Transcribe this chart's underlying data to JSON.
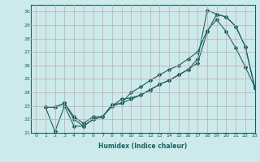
{
  "xlabel": "Humidex (Indice chaleur)",
  "bg_color": "#cceaea",
  "grid_color": "#c4a8b0",
  "line_color": "#1a6060",
  "xlim": [
    -0.5,
    23
  ],
  "ylim": [
    21,
    30.5
  ],
  "yticks": [
    21,
    22,
    23,
    24,
    25,
    26,
    27,
    28,
    29,
    30
  ],
  "xticks": [
    0,
    1,
    2,
    3,
    4,
    5,
    6,
    7,
    8,
    9,
    10,
    11,
    12,
    13,
    14,
    15,
    16,
    17,
    18,
    19,
    20,
    21,
    22,
    23
  ],
  "series1_x": [
    1,
    2,
    3,
    4,
    5,
    6,
    7,
    8,
    9,
    10,
    11,
    12,
    13,
    14,
    15,
    16,
    17,
    18,
    19,
    20,
    21,
    22,
    23
  ],
  "series1_y": [
    22.9,
    22.9,
    23.2,
    22.2,
    21.7,
    22.2,
    22.2,
    23.1,
    23.2,
    24.0,
    24.4,
    24.9,
    25.3,
    25.7,
    26.0,
    26.5,
    27.0,
    28.6,
    29.4,
    28.5,
    27.3,
    25.9,
    24.4
  ],
  "series2_x": [
    1,
    2,
    3,
    4,
    5,
    6,
    7,
    8,
    9,
    10,
    11,
    12,
    13,
    14,
    15,
    16,
    17,
    18,
    19,
    20,
    21,
    22,
    23
  ],
  "series2_y": [
    22.9,
    22.9,
    23.2,
    22.0,
    21.5,
    22.0,
    22.2,
    23.0,
    23.2,
    23.5,
    23.8,
    24.2,
    24.6,
    24.9,
    25.3,
    25.7,
    26.2,
    28.5,
    29.8,
    29.6,
    28.9,
    27.4,
    24.3
  ],
  "series3_x": [
    1,
    2,
    3,
    4,
    5,
    6,
    7,
    8,
    9,
    10,
    11,
    12,
    13,
    14,
    15,
    16,
    17,
    18,
    19,
    20,
    21,
    22,
    23
  ],
  "series3_y": [
    22.9,
    21.1,
    23.0,
    21.5,
    21.5,
    22.0,
    22.2,
    23.0,
    23.5,
    23.6,
    23.8,
    24.2,
    24.6,
    24.9,
    25.3,
    25.7,
    26.5,
    30.1,
    29.8,
    29.6,
    28.9,
    27.4,
    24.4
  ]
}
